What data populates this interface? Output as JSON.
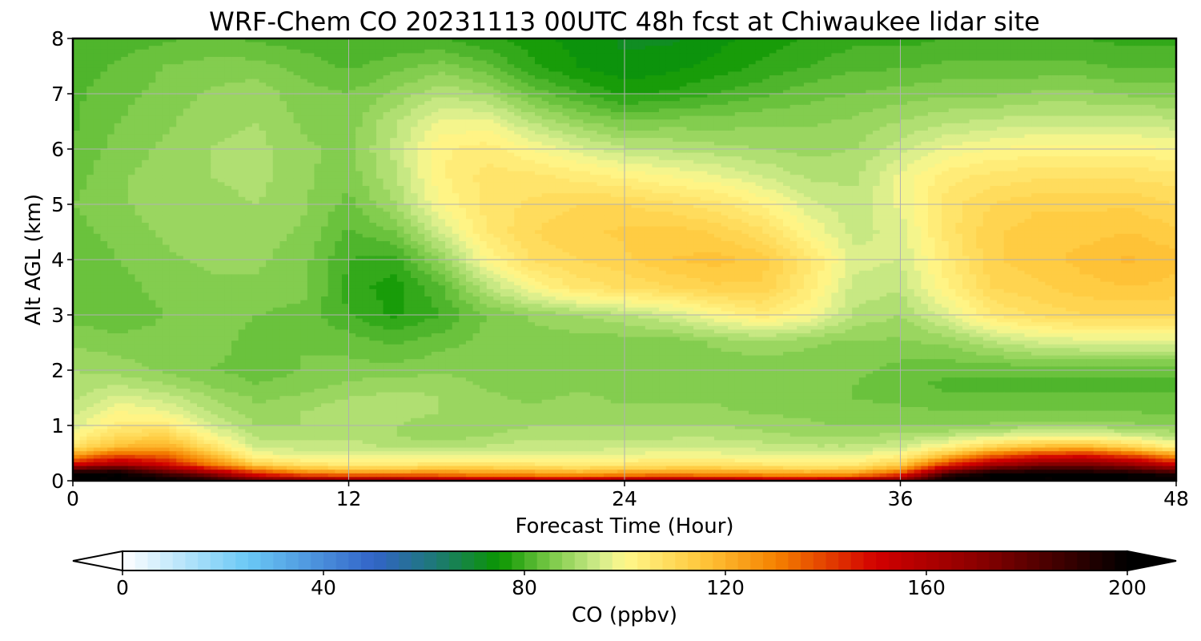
{
  "chart_data": {
    "type": "heatmap",
    "title": "WRF-Chem CO  20231113 00UTC 48h fcst at Chiwaukee lidar site",
    "xlabel": "Forecast Time (Hour)",
    "ylabel": "Alt AGL (km)",
    "xlim": [
      0,
      48
    ],
    "ylim": [
      0,
      8
    ],
    "xticks": [
      0,
      12,
      24,
      36,
      48
    ],
    "yticks": [
      0,
      1,
      2,
      3,
      4,
      5,
      6,
      7,
      8
    ],
    "grid": true,
    "x": [
      0,
      2,
      4,
      6,
      8,
      10,
      12,
      14,
      16,
      18,
      20,
      22,
      24,
      26,
      28,
      30,
      32,
      34,
      36,
      38,
      40,
      42,
      44,
      46,
      48
    ],
    "y": [
      0,
      0.1,
      0.2,
      0.3,
      0.45,
      0.6,
      0.8,
      1.0,
      1.25,
      1.5,
      1.75,
      2.0,
      2.5,
      3.0,
      3.5,
      4.0,
      4.5,
      5.0,
      5.5,
      6.0,
      6.5,
      7.0,
      7.5,
      8.0
    ],
    "values": [
      [
        200,
        200,
        200,
        195,
        180,
        175,
        170,
        170,
        165,
        160,
        160,
        160,
        165,
        165,
        165,
        160,
        160,
        165,
        175,
        200,
        200,
        200,
        200,
        200,
        200
      ],
      [
        200,
        200,
        190,
        175,
        150,
        140,
        135,
        135,
        135,
        130,
        130,
        128,
        132,
        133,
        132,
        130,
        128,
        130,
        145,
        190,
        200,
        200,
        200,
        200,
        195
      ],
      [
        185,
        190,
        170,
        150,
        130,
        118,
        115,
        115,
        118,
        116,
        115,
        112,
        115,
        116,
        116,
        114,
        112,
        114,
        125,
        165,
        185,
        190,
        190,
        185,
        175
      ],
      [
        150,
        160,
        150,
        130,
        112,
        106,
        104,
        104,
        106,
        106,
        105,
        104,
        105,
        106,
        106,
        105,
        103,
        104,
        112,
        140,
        160,
        170,
        172,
        165,
        150
      ],
      [
        125,
        140,
        135,
        118,
        100,
        98,
        98,
        97,
        98,
        98,
        98,
        98,
        99,
        99,
        99,
        98,
        97,
        98,
        102,
        118,
        135,
        145,
        148,
        140,
        125
      ],
      [
        108,
        118,
        122,
        108,
        94,
        94,
        94,
        92,
        92,
        93,
        94,
        94,
        94,
        95,
        95,
        94,
        93,
        93,
        95,
        102,
        112,
        118,
        120,
        112,
        102
      ],
      [
        100,
        110,
        112,
        100,
        92,
        92,
        92,
        90,
        89,
        90,
        92,
        92,
        92,
        92,
        92,
        91,
        90,
        90,
        91,
        93,
        96,
        98,
        98,
        96,
        92
      ],
      [
        96,
        104,
        104,
        95,
        90,
        90,
        91,
        90,
        88,
        88,
        90,
        90,
        90,
        90,
        90,
        89,
        88,
        87,
        87,
        87,
        88,
        89,
        89,
        88,
        87
      ],
      [
        94,
        100,
        98,
        92,
        88,
        90,
        92,
        92,
        90,
        88,
        88,
        89,
        88,
        88,
        88,
        87,
        87,
        86,
        86,
        85,
        85,
        85,
        85,
        85,
        84
      ],
      [
        92,
        96,
        94,
        90,
        87,
        88,
        90,
        91,
        90,
        88,
        87,
        88,
        87,
        87,
        87,
        86,
        86,
        85,
        84,
        83,
        83,
        83,
        83,
        83,
        83
      ],
      [
        91,
        92,
        90,
        87,
        85,
        86,
        88,
        89,
        89,
        87,
        86,
        87,
        86,
        85,
        86,
        86,
        85,
        85,
        83,
        82,
        82,
        82,
        82,
        82,
        82
      ],
      [
        90,
        89,
        87,
        85,
        84,
        85,
        86,
        86,
        87,
        86,
        85,
        86,
        85,
        85,
        86,
        86,
        86,
        86,
        84,
        83,
        83,
        83,
        83,
        83,
        83
      ],
      [
        87,
        86,
        86,
        86,
        84,
        85,
        84,
        82,
        84,
        86,
        86,
        86,
        86,
        86,
        88,
        89,
        88,
        87,
        87,
        88,
        92,
        95,
        96,
        96,
        96
      ],
      [
        84,
        83,
        85,
        86,
        85,
        84,
        80,
        77,
        80,
        85,
        88,
        90,
        92,
        95,
        100,
        104,
        100,
        92,
        90,
        96,
        105,
        108,
        110,
        110,
        110
      ],
      [
        83,
        84,
        86,
        87,
        87,
        86,
        79,
        76,
        82,
        92,
        100,
        106,
        108,
        110,
        112,
        112,
        104,
        94,
        93,
        102,
        110,
        112,
        114,
        115,
        114
      ],
      [
        83,
        85,
        87,
        88,
        88,
        86,
        80,
        79,
        88,
        100,
        108,
        110,
        112,
        115,
        116,
        114,
        106,
        96,
        95,
        104,
        112,
        114,
        116,
        118,
        116
      ],
      [
        84,
        86,
        88,
        89,
        89,
        87,
        82,
        85,
        95,
        105,
        110,
        112,
        113,
        114,
        112,
        108,
        100,
        94,
        96,
        106,
        112,
        114,
        114,
        115,
        113
      ],
      [
        85,
        87,
        89,
        89,
        90,
        88,
        84,
        90,
        100,
        106,
        108,
        110,
        110,
        108,
        106,
        102,
        96,
        93,
        98,
        106,
        110,
        112,
        112,
        112,
        110
      ],
      [
        84,
        87,
        89,
        90,
        91,
        88,
        86,
        92,
        102,
        106,
        106,
        104,
        102,
        100,
        98,
        95,
        92,
        92,
        98,
        104,
        106,
        107,
        107,
        107,
        106
      ],
      [
        83,
        86,
        88,
        90,
        91,
        88,
        87,
        93,
        102,
        104,
        100,
        96,
        93,
        92,
        91,
        90,
        89,
        90,
        94,
        98,
        100,
        101,
        101,
        101,
        100
      ],
      [
        82,
        85,
        87,
        89,
        90,
        87,
        86,
        92,
        98,
        98,
        92,
        88,
        85,
        86,
        86,
        87,
        87,
        88,
        90,
        92,
        93,
        94,
        94,
        94,
        93
      ],
      [
        82,
        84,
        86,
        88,
        89,
        86,
        85,
        88,
        92,
        90,
        84,
        80,
        77,
        78,
        80,
        82,
        84,
        85,
        86,
        87,
        87,
        88,
        88,
        87,
        87
      ],
      [
        81,
        83,
        85,
        86,
        86,
        84,
        82,
        84,
        86,
        83,
        78,
        75,
        73,
        74,
        76,
        78,
        80,
        82,
        82,
        83,
        83,
        83,
        83,
        82,
        82
      ],
      [
        80,
        81,
        82,
        83,
        82,
        81,
        80,
        80,
        80,
        78,
        76,
        74,
        72,
        72,
        74,
        76,
        78,
        79,
        79,
        80,
        80,
        80,
        80,
        79,
        79
      ]
    ],
    "colorbar": {
      "label": "CO  (ppbv)",
      "min": 0,
      "max": 200,
      "step": 2.5,
      "ticks": [
        0,
        40,
        80,
        120,
        160,
        200
      ],
      "extend": "both",
      "colors": [
        {
          "v": 0,
          "c": "#ffffff"
        },
        {
          "v": 25,
          "c": "#6ac8f5"
        },
        {
          "v": 50,
          "c": "#3264c8"
        },
        {
          "v": 62,
          "c": "#1e7878"
        },
        {
          "v": 75,
          "c": "#0a9600"
        },
        {
          "v": 85,
          "c": "#78c846"
        },
        {
          "v": 95,
          "c": "#d2ec8c"
        },
        {
          "v": 100,
          "c": "#fff88c"
        },
        {
          "v": 115,
          "c": "#ffc83c"
        },
        {
          "v": 130,
          "c": "#f58200"
        },
        {
          "v": 150,
          "c": "#d20000"
        },
        {
          "v": 170,
          "c": "#8c0000"
        },
        {
          "v": 200,
          "c": "#000000"
        }
      ]
    }
  }
}
